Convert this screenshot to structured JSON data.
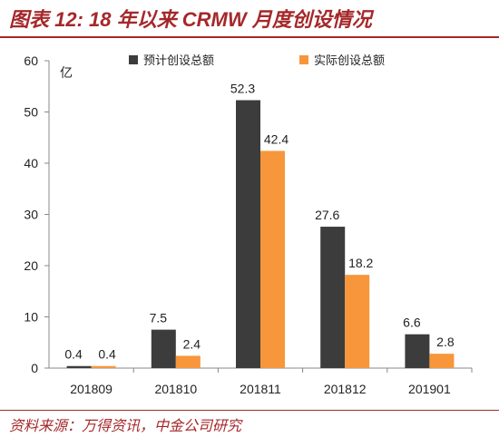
{
  "title": "图表 12: 18 年以来 CRMW 月度创设情况",
  "source": "资料来源：万得资讯，中金公司研究",
  "chart_data": {
    "type": "bar",
    "categories": [
      "201809",
      "201810",
      "201811",
      "201812",
      "201901"
    ],
    "series": [
      {
        "name": "预计创设总额",
        "color": "#3c3c3c",
        "values": [
          0.4,
          7.5,
          52.3,
          27.6,
          6.6
        ]
      },
      {
        "name": "实际创设总额",
        "color": "#f7963a",
        "values": [
          0.4,
          2.4,
          42.4,
          18.2,
          2.8
        ]
      }
    ],
    "ylabel": "亿",
    "ylim": [
      0,
      60
    ],
    "yticks": [
      0,
      10,
      20,
      30,
      40,
      50,
      60
    ],
    "legend": "top",
    "grid": false
  }
}
